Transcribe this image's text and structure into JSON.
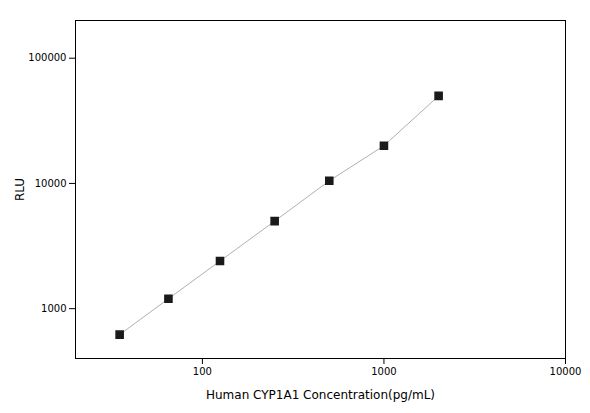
{
  "chart_data": {
    "type": "line",
    "x": [
      35,
      65,
      125,
      250,
      500,
      1000,
      2000
    ],
    "series": [
      {
        "type": "line",
        "color": "#b0b0b0",
        "values": [
          620,
          1200,
          2400,
          5000,
          10500,
          20000,
          50000
        ]
      },
      {
        "type": "scatter",
        "color": "#1a1a1a",
        "marker": "square",
        "values": [
          620,
          1200,
          2400,
          5000,
          10500,
          20000,
          50000
        ]
      }
    ],
    "xlabel": "Human CYP1A1 Concentration(pg/mL)",
    "ylabel": "RLU",
    "xlim": [
      20,
      10000
    ],
    "ylim": [
      400,
      200000
    ],
    "xticks": [
      100,
      1000,
      10000
    ],
    "yticks": [
      1000,
      10000,
      100000
    ],
    "log": true,
    "grid": false
  }
}
